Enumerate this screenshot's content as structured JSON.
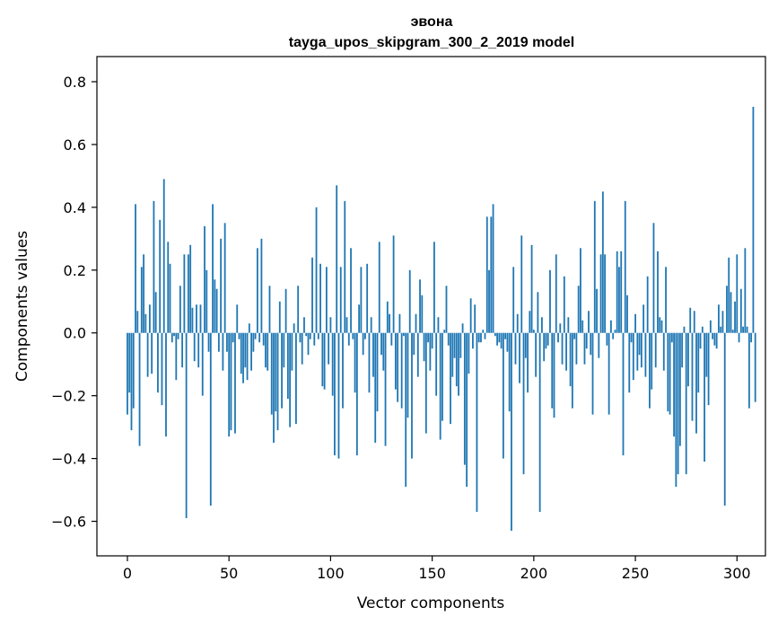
{
  "chart_data": {
    "type": "bar",
    "title": "эвона",
    "subtitle": "tayga_upos_skipgram_300_2_2019 model",
    "xlabel": "Vector components",
    "ylabel": "Components values",
    "xlim": [
      -15,
      314
    ],
    "ylim": [
      -0.71,
      0.88
    ],
    "xticks": [
      0,
      50,
      100,
      150,
      200,
      250,
      300
    ],
    "xtick_labels": [
      "0",
      "50",
      "100",
      "150",
      "200",
      "250",
      "300"
    ],
    "yticks": [
      -0.6,
      -0.4,
      -0.2,
      0.0,
      0.2,
      0.4,
      0.6,
      0.8
    ],
    "ytick_labels": [
      "−0.6",
      "−0.4",
      "−0.2",
      "0.0",
      "0.2",
      "0.4",
      "0.6",
      "0.8"
    ],
    "bar_color": "#1f77b4",
    "grid": false,
    "values": [
      -0.26,
      -0.19,
      -0.31,
      -0.24,
      0.41,
      0.07,
      -0.36,
      0.21,
      0.25,
      0.06,
      -0.14,
      0.09,
      -0.13,
      0.42,
      0.13,
      -0.19,
      0.36,
      -0.23,
      0.49,
      -0.33,
      0.29,
      0.22,
      -0.03,
      -0.01,
      -0.15,
      -0.02,
      0.15,
      -0.11,
      0.25,
      -0.59,
      0.25,
      0.28,
      0.08,
      -0.09,
      0.09,
      -0.11,
      0.09,
      -0.2,
      0.34,
      0.2,
      -0.06,
      -0.55,
      0.41,
      0.17,
      0.14,
      -0.06,
      0.3,
      -0.12,
      0.35,
      -0.06,
      -0.33,
      -0.31,
      -0.03,
      -0.32,
      0.09,
      -0.02,
      -0.13,
      -0.16,
      -0.11,
      -0.15,
      0.03,
      -0.12,
      -0.06,
      -0.02,
      0.27,
      -0.03,
      0.3,
      -0.04,
      -0.11,
      -0.12,
      0.15,
      -0.26,
      -0.35,
      -0.25,
      -0.31,
      0.1,
      -0.24,
      -0.11,
      0.14,
      -0.21,
      -0.3,
      -0.12,
      0.03,
      -0.29,
      0.15,
      -0.03,
      -0.1,
      0.05,
      -0.01,
      -0.07,
      -0.02,
      0.24,
      -0.04,
      0.4,
      -0.02,
      0.22,
      -0.17,
      -0.18,
      0.21,
      -0.1,
      0.05,
      -0.2,
      -0.39,
      0.47,
      -0.4,
      0.21,
      -0.24,
      0.42,
      0.05,
      -0.04,
      0.27,
      -0.02,
      -0.19,
      -0.39,
      0.09,
      0.21,
      -0.07,
      -0.02,
      0.22,
      -0.19,
      0.05,
      -0.14,
      -0.35,
      -0.25,
      0.29,
      -0.07,
      -0.12,
      -0.36,
      0.1,
      0.06,
      -0.04,
      0.31,
      -0.18,
      -0.22,
      0.06,
      -0.24,
      -0.01,
      -0.49,
      -0.27,
      0.2,
      -0.4,
      -0.07,
      0.06,
      -0.14,
      0.17,
      0.12,
      -0.09,
      -0.32,
      -0.03,
      -0.12,
      -0.05,
      0.29,
      -0.2,
      0.05,
      -0.34,
      -0.28,
      0.01,
      0.15,
      -0.04,
      -0.29,
      -0.14,
      -0.08,
      -0.17,
      -0.2,
      -0.08,
      0.03,
      -0.42,
      -0.49,
      -0.13,
      0.11,
      -0.05,
      0.09,
      -0.57,
      -0.03,
      -0.03,
      0.01,
      -0.02,
      0.37,
      0.2,
      0.37,
      0.41,
      -0.01,
      -0.04,
      -0.03,
      -0.05,
      -0.4,
      -0.02,
      -0.06,
      -0.25,
      -0.63,
      0.21,
      -0.1,
      0.06,
      -0.16,
      0.31,
      -0.45,
      -0.08,
      -0.19,
      0.07,
      0.28,
      0.01,
      -0.14,
      0.13,
      -0.57,
      0.05,
      -0.09,
      -0.05,
      -0.04,
      0.2,
      -0.24,
      -0.27,
      0.25,
      -0.03,
      0.03,
      -0.1,
      0.18,
      -0.12,
      0.05,
      -0.17,
      -0.24,
      -0.02,
      -0.1,
      0.15,
      0.27,
      0.04,
      -0.1,
      -0.05,
      0.07,
      -0.07,
      -0.26,
      0.42,
      0.14,
      -0.08,
      0.25,
      0.45,
      0.25,
      -0.04,
      -0.26,
      0.04,
      -0.02,
      0.01,
      0.26,
      0.21,
      0.26,
      -0.39,
      0.42,
      0.12,
      -0.19,
      -0.03,
      -0.15,
      0.06,
      -0.12,
      -0.07,
      -0.11,
      0.09,
      -0.14,
      0.18,
      -0.24,
      -0.18,
      0.35,
      -0.11,
      0.26,
      0.05,
      0.04,
      -0.12,
      0.21,
      -0.25,
      -0.26,
      -0.03,
      -0.33,
      -0.49,
      -0.45,
      -0.36,
      -0.11,
      0.02,
      -0.45,
      -0.17,
      0.08,
      -0.28,
      0.07,
      -0.32,
      -0.19,
      -0.05,
      0.02,
      -0.41,
      -0.14,
      -0.23,
      0.04,
      -0.02,
      -0.04,
      -0.05,
      0.09,
      0.02,
      0.07,
      -0.55,
      0.15,
      0.24,
      0.13,
      0.01,
      0.1,
      0.25,
      -0.03,
      0.14,
      0.02,
      0.27,
      0.02,
      -0.24,
      -0.03,
      0.72,
      -0.22
    ]
  }
}
